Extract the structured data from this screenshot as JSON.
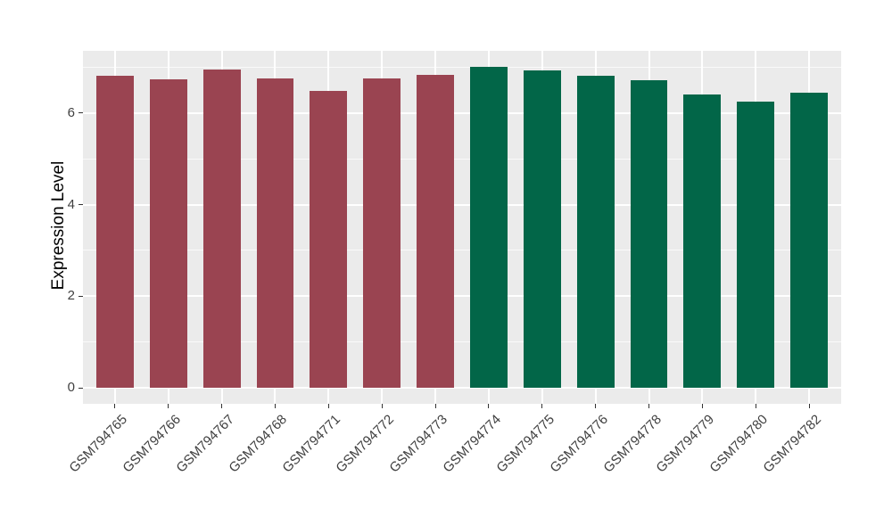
{
  "chart_data": {
    "type": "bar",
    "title": "",
    "xlabel": "",
    "ylabel": "Expression Level",
    "categories": [
      "GSM794765",
      "GSM794766",
      "GSM794767",
      "GSM794768",
      "GSM794771",
      "GSM794772",
      "GSM794773",
      "GSM794774",
      "GSM794775",
      "GSM794776",
      "GSM794778",
      "GSM794779",
      "GSM794780",
      "GSM794782"
    ],
    "values": [
      6.81,
      6.73,
      6.96,
      6.75,
      6.48,
      6.75,
      6.84,
      7.01,
      6.94,
      6.81,
      6.71,
      6.4,
      6.25,
      6.44
    ],
    "bar_colors": [
      "#9A4451",
      "#9A4451",
      "#9A4451",
      "#9A4451",
      "#9A4451",
      "#9A4451",
      "#9A4451",
      "#026648",
      "#026648",
      "#026648",
      "#026648",
      "#026648",
      "#026648",
      "#026648"
    ],
    "group_color_left": "#9A4451",
    "group_color_right": "#026648",
    "yticks": [
      0,
      2,
      4,
      6
    ],
    "minor_gridlines": [
      1,
      3,
      5,
      7
    ],
    "y_range": [
      -0.35,
      7.36
    ],
    "bar_slot_fraction": 0.7,
    "grid": true,
    "legend": "none",
    "panel_bg": "#EBEBEB",
    "grid_color": "#FFFFFF",
    "axis_text_color": "#404040",
    "tick_color": "#333333"
  }
}
